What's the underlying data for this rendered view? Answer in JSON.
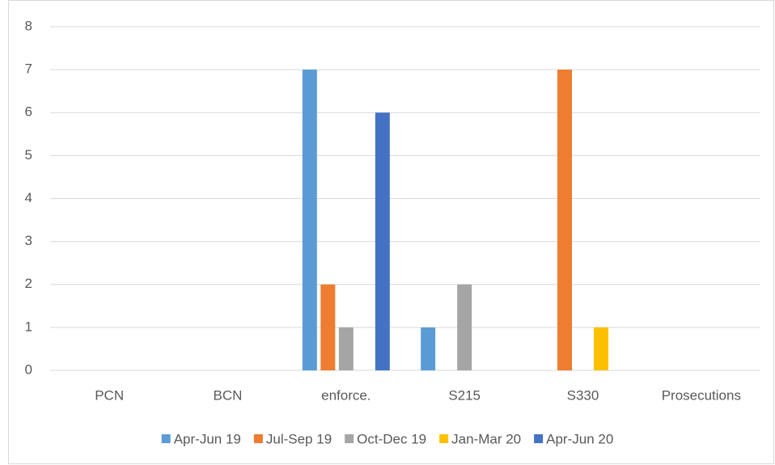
{
  "chart_data": {
    "type": "bar",
    "categories": [
      "PCN",
      "BCN",
      "enforce.",
      "S215",
      "S330",
      "Prosecutions"
    ],
    "series": [
      {
        "name": "Apr-Jun 19",
        "color": "#5B9BD5",
        "values": [
          0,
          0,
          7,
          1,
          0,
          0
        ]
      },
      {
        "name": "Jul-Sep 19",
        "color": "#ED7D31",
        "values": [
          0,
          0,
          2,
          0,
          7,
          0
        ]
      },
      {
        "name": "Oct-Dec 19",
        "color": "#A5A5A5",
        "values": [
          0,
          0,
          1,
          2,
          0,
          0
        ]
      },
      {
        "name": "Jan-Mar 20",
        "color": "#FFC000",
        "values": [
          0,
          0,
          0,
          0,
          1,
          0
        ]
      },
      {
        "name": "Apr-Jun 20",
        "color": "#4472C4",
        "values": [
          0,
          0,
          6,
          0,
          0,
          0
        ]
      }
    ],
    "ylim": [
      0,
      8
    ],
    "yticks": [
      0,
      1,
      2,
      3,
      4,
      5,
      6,
      7,
      8
    ],
    "grid": true,
    "legend": "bottom"
  }
}
